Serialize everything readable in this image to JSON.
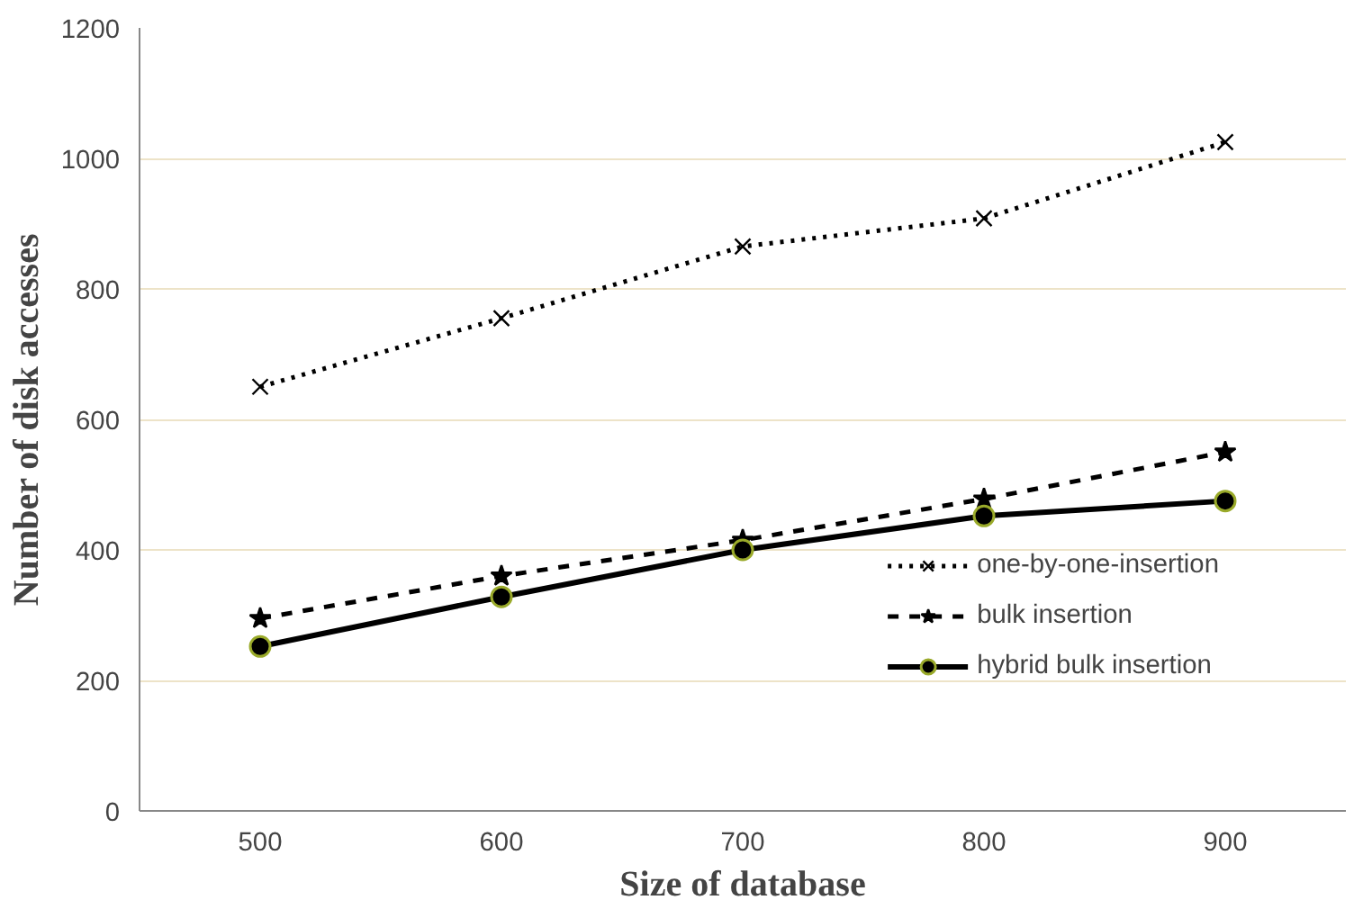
{
  "chart_data": {
    "type": "line",
    "xlabel": "Size of database",
    "ylabel": "Number of disk accesses",
    "categories": [
      "500",
      "600",
      "700",
      "800",
      "900"
    ],
    "series": [
      {
        "name": "one-by-one-insertion",
        "color": "#000000",
        "values": [
          650,
          755,
          865,
          908,
          1025
        ],
        "marker": "cross",
        "line_style": "dotted"
      },
      {
        "name": "bulk insertion",
        "color": "#000000",
        "values": [
          295,
          360,
          415,
          478,
          550
        ],
        "marker": "star",
        "line_style": "dashed"
      },
      {
        "name": "hybrid bulk insertion",
        "color": "#000000",
        "values": [
          252,
          328,
          400,
          452,
          475
        ],
        "marker": "circle",
        "line_style": "solid"
      }
    ],
    "ylim": [
      0,
      1200
    ],
    "yticks": [
      0,
      200,
      400,
      600,
      800,
      1000,
      1200
    ],
    "grid": "y",
    "legend": "right"
  }
}
